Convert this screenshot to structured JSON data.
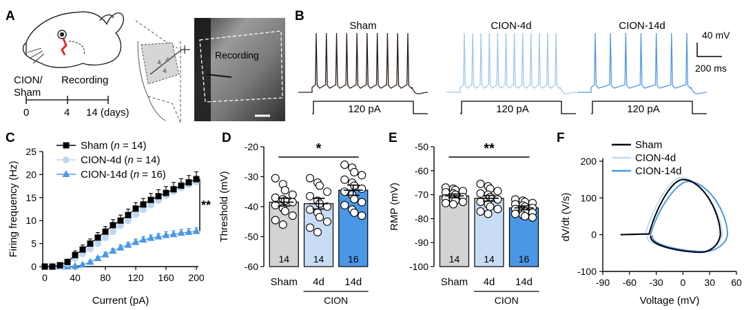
{
  "panels": {
    "A": {
      "letter": "A",
      "timeline_group": "CION/",
      "timeline_group2": "Sham",
      "timeline_event": "Recording",
      "ticks": [
        "0",
        "4",
        "14 (days)"
      ],
      "micrograph_label": "Recording"
    },
    "B": {
      "letter": "B",
      "traces": [
        {
          "name": "Sham",
          "color": "#2b1a16",
          "spikes": 10
        },
        {
          "name": "CION-4d",
          "color": "#9fc7ee",
          "spikes": 12
        },
        {
          "name": "CION-14d",
          "color": "#4b97e6",
          "spikes": 7
        }
      ],
      "step_label": "120 pA",
      "scale_y": "40 mV",
      "scale_x": "200 ms"
    },
    "C": {
      "letter": "C",
      "significance": "**"
    },
    "D": {
      "letter": "D"
    },
    "E": {
      "letter": "E",
      "group_label": "CION"
    },
    "F": {
      "letter": "F"
    }
  },
  "chart_data": [
    {
      "panel": "C",
      "type": "line",
      "xlabel": "Current (pA)",
      "ylabel": "Firing frequency (Hz)",
      "xlim": [
        0,
        200
      ],
      "ylim": [
        0,
        25
      ],
      "xticks": [
        0,
        40,
        80,
        120,
        160,
        200
      ],
      "yticks": [
        0,
        5,
        10,
        15,
        20,
        25
      ],
      "x": [
        0,
        10,
        20,
        30,
        40,
        50,
        60,
        70,
        80,
        90,
        100,
        110,
        120,
        130,
        140,
        150,
        160,
        170,
        180,
        190,
        200
      ],
      "series": [
        {
          "name": "Sham",
          "n": "14",
          "color": "#000000",
          "marker": "square",
          "values": [
            0,
            0,
            0.3,
            1.0,
            2.5,
            3.7,
            5.0,
            6.3,
            7.6,
            9.0,
            10.0,
            11.2,
            12.6,
            13.5,
            14.5,
            15.3,
            16.0,
            16.8,
            17.6,
            18.3,
            19.0
          ],
          "errors": [
            0,
            0,
            0.3,
            0.6,
            0.9,
            1.0,
            1.0,
            1.1,
            1.1,
            1.2,
            1.2,
            1.3,
            1.3,
            1.3,
            1.4,
            1.4,
            1.4,
            1.5,
            1.5,
            1.5,
            1.6
          ]
        },
        {
          "name": "CION-4d",
          "n": "14",
          "color": "#bcd7f3",
          "marker": "circle",
          "values": [
            0,
            0,
            0.2,
            0.7,
            1.8,
            2.8,
            3.9,
            5.0,
            6.3,
            7.6,
            8.9,
            10.0,
            11.3,
            12.4,
            13.4,
            14.4,
            15.4,
            16.3,
            17.1,
            17.8,
            18.4
          ],
          "errors": [
            0,
            0,
            0.2,
            0.4,
            0.6,
            0.8,
            0.9,
            1.0,
            1.0,
            1.1,
            1.1,
            1.2,
            1.2,
            1.2,
            1.3,
            1.3,
            1.3,
            1.4,
            1.4,
            1.4,
            1.4
          ]
        },
        {
          "name": "CION-14d",
          "n": "16",
          "color": "#4b97e6",
          "marker": "triangle",
          "values": [
            0,
            0,
            0,
            0,
            0.1,
            0.4,
            1.0,
            1.8,
            2.6,
            3.4,
            4.1,
            4.7,
            5.3,
            5.8,
            6.2,
            6.5,
            6.8,
            7.0,
            7.3,
            7.5,
            7.7
          ],
          "errors": [
            0,
            0,
            0,
            0,
            0.1,
            0.2,
            0.3,
            0.4,
            0.5,
            0.5,
            0.6,
            0.6,
            0.7,
            0.7,
            0.7,
            0.7,
            0.8,
            0.8,
            0.8,
            0.8,
            0.8
          ]
        }
      ]
    },
    {
      "panel": "D",
      "type": "bar",
      "ylabel": "Threshold (mV)",
      "ylim": [
        -60,
        -20
      ],
      "yticks": [
        -20,
        -30,
        -40,
        -50,
        -60
      ],
      "categories": [
        "Sham",
        "4d",
        "14d"
      ],
      "group_label": "CION",
      "values": [
        -38.5,
        -39.0,
        -34.5
      ],
      "errors": [
        1.3,
        1.8,
        1.7
      ],
      "n": [
        "14",
        "14",
        "16"
      ],
      "colors": [
        "#d3d3d3",
        "#c9dcf6",
        "#4b97e6"
      ],
      "significance": "*",
      "points": [
        [
          -30.5,
          -32.5,
          -34.5,
          -36.0,
          -37.0,
          -37.5,
          -38.0,
          -38.5,
          -39.5,
          -40.5,
          -41.5,
          -43.0,
          -44.5,
          -46.0
        ],
        [
          -30.5,
          -32.0,
          -33.0,
          -35.0,
          -36.5,
          -38.0,
          -39.0,
          -40.0,
          -41.0,
          -42.0,
          -43.5,
          -45.0,
          -47.0,
          -48.5
        ],
        [
          -26.0,
          -27.0,
          -28.5,
          -29.5,
          -31.0,
          -32.0,
          -33.0,
          -34.0,
          -35.0,
          -36.0,
          -37.5,
          -38.5,
          -39.5,
          -41.0,
          -42.0,
          -43.0
        ]
      ]
    },
    {
      "panel": "E",
      "type": "bar",
      "ylabel": "RMP (mV)",
      "ylim": [
        -100,
        -50
      ],
      "yticks": [
        -50,
        -60,
        -70,
        -80,
        -90,
        -100
      ],
      "categories": [
        "Sham",
        "4d",
        "14d"
      ],
      "group_label": "CION",
      "values": [
        -70.5,
        -71.5,
        -75.5
      ],
      "errors": [
        0.8,
        1.2,
        0.8
      ],
      "n": [
        "14",
        "14",
        "16"
      ],
      "colors": [
        "#d3d3d3",
        "#c9dcf6",
        "#4b97e6"
      ],
      "significance": "**",
      "points": [
        [
          -67.0,
          -67.5,
          -68.0,
          -68.5,
          -69.0,
          -69.5,
          -70.0,
          -71.0,
          -71.5,
          -72.0,
          -72.5,
          -73.0,
          -73.5,
          -74.0
        ],
        [
          -65.5,
          -66.5,
          -67.5,
          -68.5,
          -69.5,
          -70.0,
          -71.0,
          -72.0,
          -73.0,
          -74.0,
          -75.0,
          -76.0,
          -77.0,
          -78.0
        ],
        [
          -72.0,
          -72.5,
          -73.0,
          -73.5,
          -74.0,
          -74.5,
          -75.0,
          -75.5,
          -76.0,
          -76.5,
          -77.0,
          -77.5,
          -78.0,
          -78.5,
          -79.0,
          -79.5
        ]
      ]
    },
    {
      "panel": "F",
      "type": "line",
      "xlabel": "Voltage (mV)",
      "ylabel": "dV/dt (V/s)",
      "xlim": [
        -90,
        60
      ],
      "ylim": [
        -100,
        200
      ],
      "xticks": [
        -90,
        -60,
        -30,
        0,
        30,
        60
      ],
      "yticks": [
        -100,
        0,
        100,
        200
      ],
      "series": [
        {
          "name": "Sham",
          "color": "#000000",
          "vth": -38,
          "vpeak": 42,
          "max": 150,
          "min": -48,
          "vmax": 0,
          "vmin": 20
        },
        {
          "name": "CION-4d",
          "color": "#c4daf2",
          "vth": -42,
          "vpeak": 44,
          "max": 155,
          "min": -46,
          "vmax": -2,
          "vmin": 18
        },
        {
          "name": "CION-14d",
          "color": "#4b97e6",
          "vth": -36,
          "vpeak": 50,
          "max": 145,
          "min": -46,
          "vmax": 6,
          "vmin": 24
        }
      ]
    }
  ]
}
